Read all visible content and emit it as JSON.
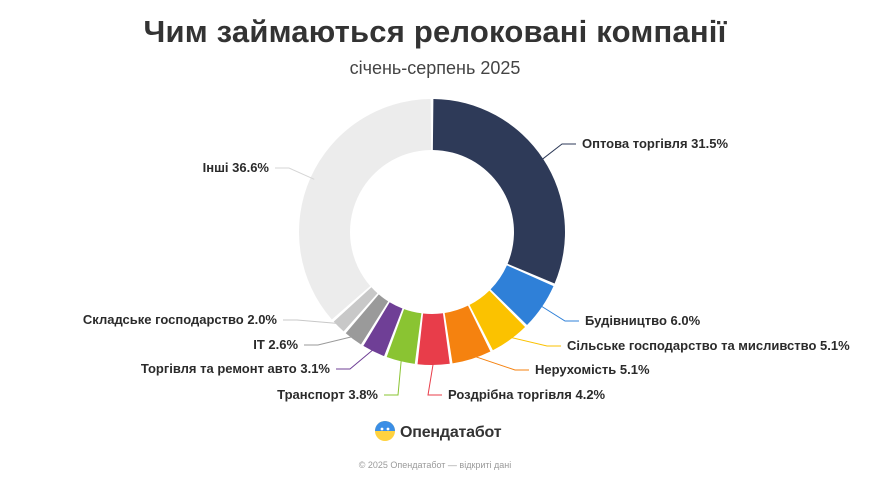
{
  "header": {
    "title": "Чим займаються релоковані компанії",
    "subtitle": "січень-серпень 2025"
  },
  "chart_data": {
    "type": "pie",
    "donut": true,
    "title": "Чим займаються релоковані компанії",
    "subtitle": "січень-серпень 2025",
    "slices": [
      {
        "label": "Оптова торгівля",
        "value": 31.5,
        "display": "Оптова торгівля 31.5%",
        "color": "#2e3a58"
      },
      {
        "label": "Будівництво",
        "value": 6.0,
        "display": "Будівництво 6.0%",
        "color": "#2f80d8"
      },
      {
        "label": "Сільське господарство та мисливство",
        "value": 5.1,
        "display": "Сільське господарство та мисливство 5.1%",
        "color": "#fbc200"
      },
      {
        "label": "Нерухомість",
        "value": 5.1,
        "display": "Нерухомість 5.1%",
        "color": "#f5820f"
      },
      {
        "label": "Роздрібна торгівля",
        "value": 4.2,
        "display": "Роздрібна торгівля 4.2%",
        "color": "#e83d4a"
      },
      {
        "label": "Транспорт",
        "value": 3.8,
        "display": "Транспорт 3.8%",
        "color": "#8ac432"
      },
      {
        "label": "Торгівля та ремонт авто",
        "value": 3.1,
        "display": "Торгівля та ремонт авто 3.1%",
        "color": "#6f3f96"
      },
      {
        "label": "IT",
        "value": 2.6,
        "display": "IT 2.6%",
        "color": "#9a9a9a"
      },
      {
        "label": "Складське господарство",
        "value": 2.0,
        "display": "Складське господарство 2.0%",
        "color": "#c8c8c8"
      },
      {
        "label": "Інші",
        "value": 36.6,
        "display": "Інші 36.6%",
        "color": "#ececec"
      }
    ]
  },
  "logo": {
    "text": "Опендатабот",
    "icon": "opendatabot-logo-icon"
  },
  "footer": {
    "copyright": "© 2025 Опендатабот — відкриті дані"
  }
}
